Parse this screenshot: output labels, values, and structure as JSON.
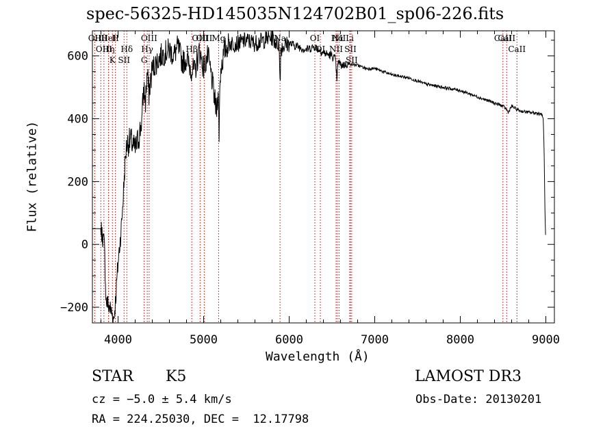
{
  "chart_data": {
    "type": "line",
    "title": "spec-56325-HD145035N124702B01_sp06-226.fits",
    "xlabel": "Wavelength (Å)",
    "ylabel": "Flux (relative)",
    "xlim": [
      3700,
      9100
    ],
    "ylim": [
      -250,
      680
    ],
    "xticks": [
      4000,
      5000,
      6000,
      7000,
      8000,
      9000
    ],
    "yticks": [
      -200,
      0,
      200,
      400,
      600
    ],
    "xtick_labels": [
      "4000",
      "5000",
      "6000",
      "7000",
      "8000",
      "9000"
    ],
    "ytick_labels": [
      "−200",
      "0",
      "200",
      "400",
      "600"
    ],
    "series": [
      {
        "name": "flux",
        "x": [
          3700,
          3800,
          3840,
          3860,
          3900,
          3930,
          3950,
          3970,
          4000,
          4020,
          4040,
          4060,
          4080,
          4100,
          4150,
          4200,
          4250,
          4280,
          4300,
          4320,
          4340,
          4360,
          4400,
          4450,
          4500,
          4550,
          4600,
          4650,
          4700,
          4750,
          4800,
          4850,
          4900,
          4950,
          5000,
          5050,
          5100,
          5150,
          5170,
          5180,
          5190,
          5200,
          5250,
          5300,
          5400,
          5500,
          5600,
          5700,
          5800,
          5850,
          5880,
          5890,
          5895,
          5900,
          5920,
          6000,
          6100,
          6200,
          6300,
          6400,
          6500,
          6540,
          6560,
          6565,
          6580,
          6600,
          6700,
          6800,
          6900,
          7000,
          7200,
          7400,
          7600,
          7800,
          8000,
          8200,
          8400,
          8500,
          8540,
          8560,
          8600,
          8660,
          8700,
          8800,
          8900,
          8950,
          8970,
          8980,
          8990,
          9000
        ],
        "values": [
          50,
          50,
          0,
          -180,
          -200,
          -220,
          -240,
          -180,
          -60,
          0,
          60,
          150,
          250,
          320,
          330,
          300,
          350,
          400,
          500,
          450,
          550,
          480,
          560,
          580,
          600,
          610,
          620,
          600,
          630,
          580,
          590,
          560,
          550,
          620,
          560,
          600,
          520,
          420,
          500,
          340,
          500,
          560,
          620,
          640,
          640,
          650,
          640,
          650,
          660,
          640,
          640,
          560,
          500,
          620,
          630,
          640,
          630,
          620,
          630,
          610,
          600,
          590,
          520,
          560,
          585,
          570,
          575,
          570,
          560,
          560,
          540,
          530,
          510,
          500,
          490,
          470,
          450,
          440,
          430,
          420,
          440,
          430,
          425,
          420,
          418,
          415,
          400,
          300,
          100,
          0
        ]
      }
    ],
    "lines": [
      {
        "label": "Hθ",
        "x": 3798
      },
      {
        "label": "OII",
        "x": 3727
      },
      {
        "label": "OIII",
        "x": 3835
      },
      {
        "label": "K",
        "x": 3934
      },
      {
        "label": "HeI",
        "x": 3889
      },
      {
        "label": "Hη",
        "x": 3889
      },
      {
        "label": "H",
        "x": 3969
      },
      {
        "label": "Hδ",
        "x": 4102
      },
      {
        "label": "SII",
        "x": 4070
      },
      {
        "label": "OIII",
        "x": 4363
      },
      {
        "label": "Hγ",
        "x": 4341
      },
      {
        "label": "G",
        "x": 4305
      },
      {
        "label": "OIII",
        "x": 5007
      },
      {
        "label": "OIII",
        "x": 4959
      },
      {
        "label": "Hβ",
        "x": 4861
      },
      {
        "label": "Mg",
        "x": 5175
      },
      {
        "label": "Na",
        "x": 5893
      },
      {
        "label": "OI",
        "x": 6300
      },
      {
        "label": "Hα",
        "x": 6563
      },
      {
        "label": "OI",
        "x": 6364
      },
      {
        "label": "NII",
        "x": 6548
      },
      {
        "label": "NII",
        "x": 6583
      },
      {
        "label": "SII",
        "x": 6716
      },
      {
        "label": "SII",
        "x": 6731
      },
      {
        "label": "Li",
        "x": 6708
      },
      {
        "label": "CaII",
        "x": 8542
      },
      {
        "label": "CaII",
        "x": 8498
      },
      {
        "label": "CaII",
        "x": 8662
      }
    ]
  },
  "info": {
    "class": "STAR",
    "subclass": "K5",
    "survey": "LAMOST DR3",
    "cz": "cz = −5.0 ± 5.4 km/s",
    "obs_date": "Obs-Date: 20130201",
    "coords": "RA = 224.25030, DEC =  12.17798"
  }
}
